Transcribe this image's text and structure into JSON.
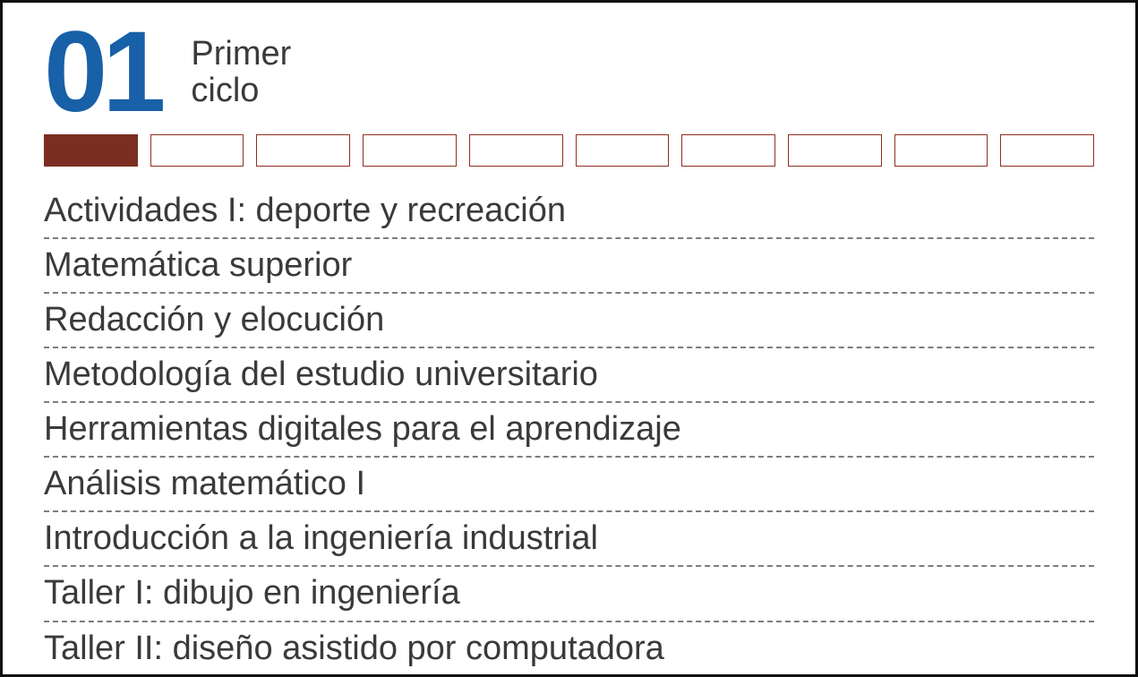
{
  "colors": {
    "number": "#1860a8",
    "text": "#3a3a3a",
    "box_border": "#8f2f22",
    "box_fill": "#7a2e22",
    "dash": "#7d7d7d",
    "card_border": "#0f0f0f",
    "background": "#ffffff"
  },
  "header": {
    "number": "01",
    "label_line1": "Primer",
    "label_line2": "ciclo"
  },
  "progress": {
    "total": 10,
    "filled": 1
  },
  "courses": [
    "Actividades I: deporte y recreación",
    "Matemática superior",
    "Redacción y elocución",
    "Metodología del estudio universitario",
    "Herramientas digitales para el aprendizaje",
    "Análisis matemático I",
    "Introducción a la ingeniería industrial",
    "Taller I: dibujo en ingeniería",
    "Taller II: diseño asistido por computadora"
  ],
  "typography": {
    "number_fontsize": 128,
    "label_fontsize": 38,
    "course_fontsize": 38
  }
}
